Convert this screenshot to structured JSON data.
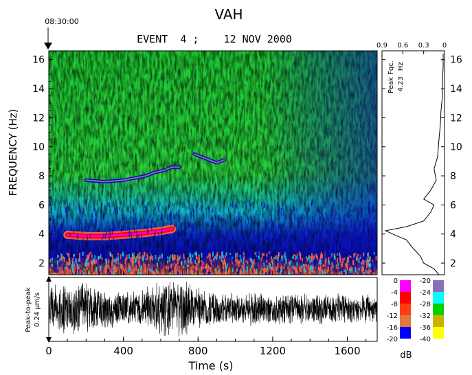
{
  "chart_data": [
    {
      "type": "heatmap",
      "title": "VAH",
      "subtitle": "EVENT  4 ;    12 NOV 2000",
      "start_time": "08:30:00",
      "xlabel": "Time (s)",
      "ylabel": "FREQUENCY (Hz)",
      "x_ticks": [
        0,
        400,
        800,
        1200,
        1600
      ],
      "y_ticks": [
        2,
        4,
        6,
        8,
        10,
        12,
        14,
        16
      ],
      "xlim": [
        0,
        1760
      ],
      "ylim": [
        1.2,
        16.6
      ],
      "features": [
        {
          "name": "",
          "t": [
            100,
            200,
            300,
            400,
            500,
            600,
            660
          ],
          "f": [
            3.95,
            3.85,
            3.85,
            3.95,
            4.05,
            4.2,
            4.35
          ]
        },
        {
          "name": "",
          "t": [
            200,
            300,
            400,
            480,
            520,
            560,
            620,
            660,
            700
          ],
          "f": [
            7.7,
            7.6,
            7.7,
            7.9,
            8.0,
            8.2,
            8.4,
            8.6,
            8.6
          ]
        },
        {
          "name": "",
          "t": [
            780,
            820,
            860,
            900,
            940
          ],
          "f": [
            9.5,
            9.3,
            9.1,
            8.9,
            9.1
          ]
        }
      ]
    },
    {
      "type": "line",
      "title": "Peak Fqc.",
      "peak_value": "4.23",
      "peak_unit": "Hz",
      "x_ticks": [
        0.9,
        0.6,
        0.3,
        0
      ],
      "xlim": [
        0.9,
        0
      ],
      "ylim": [
        1.2,
        16.6
      ],
      "y_ticks": [
        2,
        4,
        6,
        8,
        10,
        12,
        14,
        16
      ],
      "x": [
        0.08,
        0.15,
        0.3,
        0.35,
        0.45,
        0.55,
        0.7,
        0.85,
        0.55,
        0.3,
        0.2,
        0.15,
        0.3,
        0.2,
        0.12,
        0.15,
        0.1,
        0.08,
        0.06,
        0.05,
        0.03,
        0.03,
        0.02,
        0.02
      ],
      "y": [
        1.2,
        1.6,
        2.0,
        2.5,
        3.0,
        3.6,
        3.9,
        4.23,
        4.5,
        4.9,
        5.5,
        6.0,
        6.4,
        7.0,
        7.7,
        8.5,
        9.3,
        10.5,
        11.5,
        12.5,
        13.5,
        14.5,
        15.5,
        16.4
      ]
    },
    {
      "type": "line",
      "ylabel_line1": "Peak-to-peak",
      "ylabel_line2": "0.24 μm/s",
      "xlim": [
        0,
        1760
      ]
    }
  ],
  "legend": {
    "unit": "dB",
    "left_labels": [
      "0",
      "-4",
      "-8",
      "-12",
      "-16",
      "-20"
    ],
    "right_labels": [
      "-20",
      "-24",
      "-28",
      "-32",
      "-36",
      "-40"
    ],
    "left_colors": [
      "#ff00ff",
      "#ff0000",
      "#ff3c14",
      "#e07a3c",
      "#0000ff"
    ],
    "right_colors": [
      "#8c6eb4",
      "#00ffff",
      "#00d200",
      "#c8b400",
      "#ffff00"
    ]
  },
  "colors": {
    "deep_blue": "#0a0ab4",
    "cyan": "#00e0f0",
    "green": "#1ec832",
    "yellow": "#f0f000",
    "orange": "#ff6a3c",
    "magenta": "#ff00d8"
  }
}
